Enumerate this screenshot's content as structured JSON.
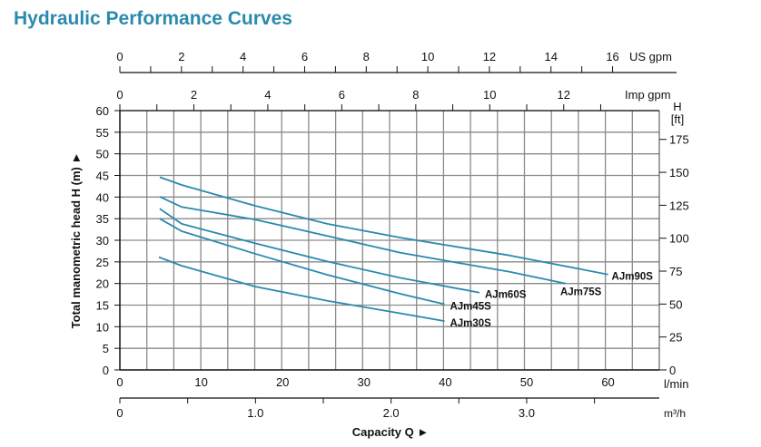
{
  "chart_data": {
    "type": "line",
    "title": "Hydraulic Performance Curves",
    "xlabel": "Capacity Q",
    "ylabel": "Total manometric head H (m)",
    "xlim": [
      0,
      66.3
    ],
    "ylim": [
      0,
      60
    ],
    "grid": true,
    "x_unit": "l/min",
    "x_ticks": [
      0,
      10,
      20,
      30,
      40,
      50,
      60
    ],
    "y_ticks": [
      0,
      5,
      10,
      15,
      20,
      25,
      30,
      35,
      40,
      45,
      50,
      55,
      60
    ],
    "right_axis": {
      "label": "H",
      "unit": "[ft]",
      "ticks": [
        0,
        25,
        50,
        75,
        100,
        125,
        150,
        175
      ]
    },
    "top_axes": [
      {
        "unit": "US gpm",
        "ticks": [
          0,
          2,
          4,
          6,
          8,
          10,
          12,
          14,
          16
        ],
        "labels": [
          "0",
          "2",
          "4",
          "6",
          "8",
          "10",
          "12",
          "14",
          "16"
        ]
      },
      {
        "unit": "Imp gpm",
        "ticks": [
          0,
          2,
          4,
          6,
          8,
          10,
          12
        ],
        "labels": [
          "0",
          "2",
          "4",
          "6",
          "8",
          "10",
          "12"
        ]
      }
    ],
    "bottom_axis2": {
      "unit": "m³/h",
      "ticks": [
        0,
        1,
        2,
        3
      ],
      "labels": [
        "0",
        "1.0",
        "2.0",
        "3.0"
      ]
    },
    "series": [
      {
        "name": "AJm90S",
        "x": [
          4.9,
          7.6,
          16.6,
          25.5,
          34.5,
          47.9,
          60.0
        ],
        "y": [
          44.6,
          42.8,
          38.0,
          33.8,
          30.6,
          26.5,
          22.1
        ]
      },
      {
        "name": "AJm75S",
        "x": [
          4.9,
          7.6,
          16.6,
          25.5,
          34.5,
          47.9,
          54.8
        ],
        "y": [
          40.1,
          37.7,
          34.8,
          31.0,
          27.1,
          22.7,
          20.0
        ]
      },
      {
        "name": "AJm60S",
        "x": [
          4.9,
          7.6,
          16.6,
          25.5,
          34.5,
          44.2
        ],
        "y": [
          37.3,
          33.8,
          29.3,
          25.1,
          21.3,
          17.9
        ]
      },
      {
        "name": "AJm45S",
        "x": [
          4.9,
          7.6,
          16.6,
          25.5,
          34.5,
          39.9
        ],
        "y": [
          35.0,
          32.1,
          26.9,
          22.0,
          17.6,
          15.2
        ]
      },
      {
        "name": "AJm30S",
        "x": [
          4.8,
          7.6,
          16.6,
          25.5,
          34.5,
          39.9
        ],
        "y": [
          26.1,
          24.1,
          19.3,
          16.0,
          13.1,
          11.3
        ]
      }
    ],
    "colors": {
      "curve": "#2a8aae",
      "grid": "#8a8a8a",
      "title": "#2a8aae"
    }
  }
}
